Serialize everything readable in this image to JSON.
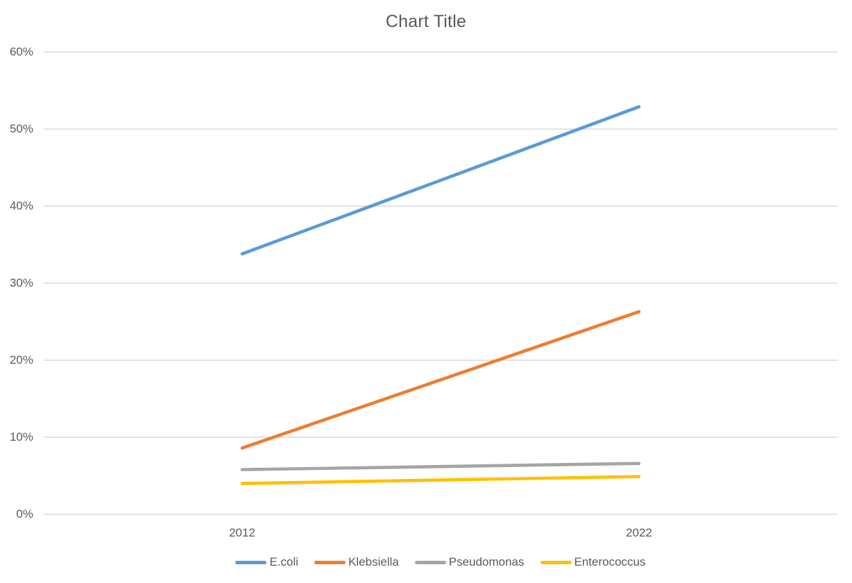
{
  "chart_data": {
    "type": "line",
    "title": "Chart Title",
    "categories": [
      "2012",
      "2022"
    ],
    "series": [
      {
        "name": "E.coli",
        "color": "#5B9BD5",
        "values": [
          33.8,
          52.9
        ]
      },
      {
        "name": "Klebsiella",
        "color": "#ED7D31",
        "values": [
          8.6,
          26.3
        ]
      },
      {
        "name": "Pseudomonas",
        "color": "#A5A5A5",
        "values": [
          5.8,
          6.6
        ]
      },
      {
        "name": "Enterococcus",
        "color": "#FFC000",
        "values": [
          4.0,
          4.9
        ]
      }
    ],
    "ylim": [
      0,
      60
    ],
    "ytick_step": 10,
    "yticks": [
      "0%",
      "10%",
      "20%",
      "30%",
      "40%",
      "50%",
      "60%"
    ],
    "grid": true,
    "grid_color": "#D9D9D9",
    "axis_line_color": "#D9D9D9",
    "text_color": "#595959",
    "legend_position": "bottom"
  }
}
